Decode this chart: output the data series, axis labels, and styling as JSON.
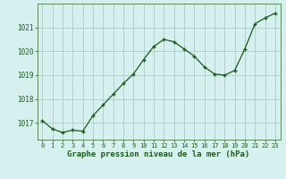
{
  "x": [
    0,
    1,
    2,
    3,
    4,
    5,
    6,
    7,
    8,
    9,
    10,
    11,
    12,
    13,
    14,
    15,
    16,
    17,
    18,
    19,
    20,
    21,
    22,
    23
  ],
  "y": [
    1017.1,
    1016.75,
    1016.6,
    1016.7,
    1016.65,
    1017.3,
    1017.75,
    1018.2,
    1018.65,
    1019.05,
    1019.65,
    1020.2,
    1020.5,
    1020.4,
    1020.1,
    1019.8,
    1019.35,
    1019.05,
    1019.0,
    1019.2,
    1020.1,
    1021.15,
    1021.4,
    1021.6
  ],
  "line_color": "#1a5c1a",
  "marker_color": "#1a5c1a",
  "bg_color": "#d6f0ef",
  "grid_color": "#aacccc",
  "xlabel": "Graphe pression niveau de la mer (hPa)",
  "xlabel_color": "#1a5c1a",
  "tick_color": "#1a5c1a",
  "ylim": [
    1016.3,
    1022.0
  ],
  "yticks": [
    1017,
    1018,
    1019,
    1020,
    1021
  ],
  "xticks": [
    0,
    1,
    2,
    3,
    4,
    5,
    6,
    7,
    8,
    9,
    10,
    11,
    12,
    13,
    14,
    15,
    16,
    17,
    18,
    19,
    20,
    21,
    22,
    23
  ],
  "spine_color": "#5a8a5a"
}
